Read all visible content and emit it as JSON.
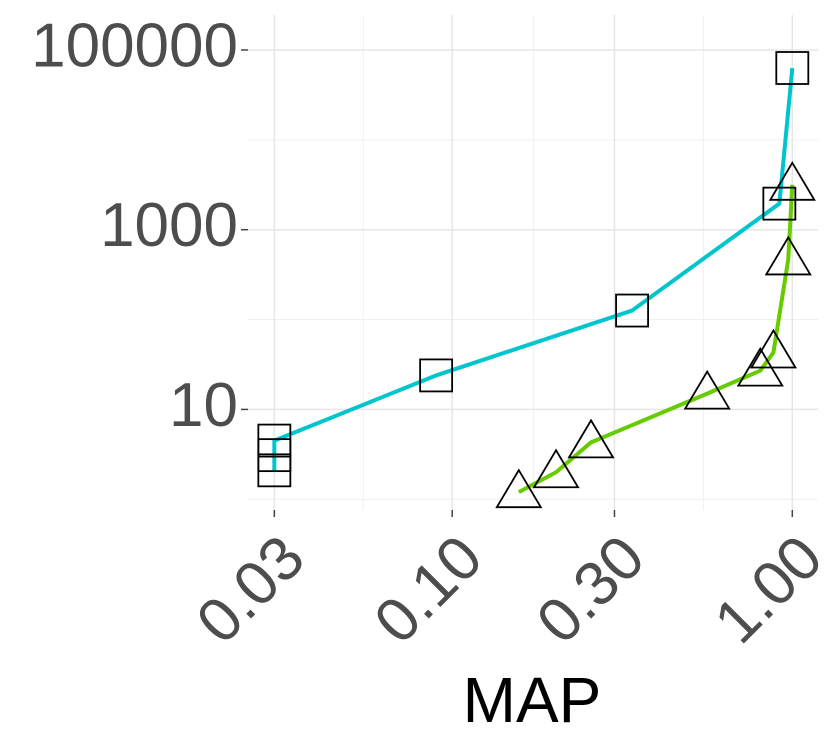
{
  "chart_data": {
    "type": "line",
    "xlabel": "MAP",
    "xscale": "log",
    "yscale": "log",
    "grid": true,
    "xlim": [
      0.0251,
      1.19
    ],
    "ylim": [
      0.76,
      245000
    ],
    "xticks": [
      {
        "value": 0.03,
        "label": "0.03"
      },
      {
        "value": 0.1,
        "label": "0.10"
      },
      {
        "value": 0.3,
        "label": "0.30"
      },
      {
        "value": 1,
        "label": "1.00"
      }
    ],
    "yticks": [
      10,
      1000,
      100000
    ],
    "series": [
      {
        "color": "#00c5cd",
        "marker": "square",
        "x": [
          0.03,
          0.03,
          0.03,
          0.0897,
          0.338,
          0.916,
          1.0
        ],
        "values": [
          2.1,
          3.1,
          4.5,
          23.9,
          126,
          1950,
          63000
        ]
      },
      {
        "color": "#66cc00",
        "marker": "triangle",
        "x": [
          0.157,
          0.202,
          0.256,
          0.562,
          0.805,
          0.88,
          0.973,
          1.0
        ],
        "values": [
          1.2,
          2.0,
          4.3,
          15,
          27,
          43,
          467,
          3160
        ]
      }
    ]
  }
}
